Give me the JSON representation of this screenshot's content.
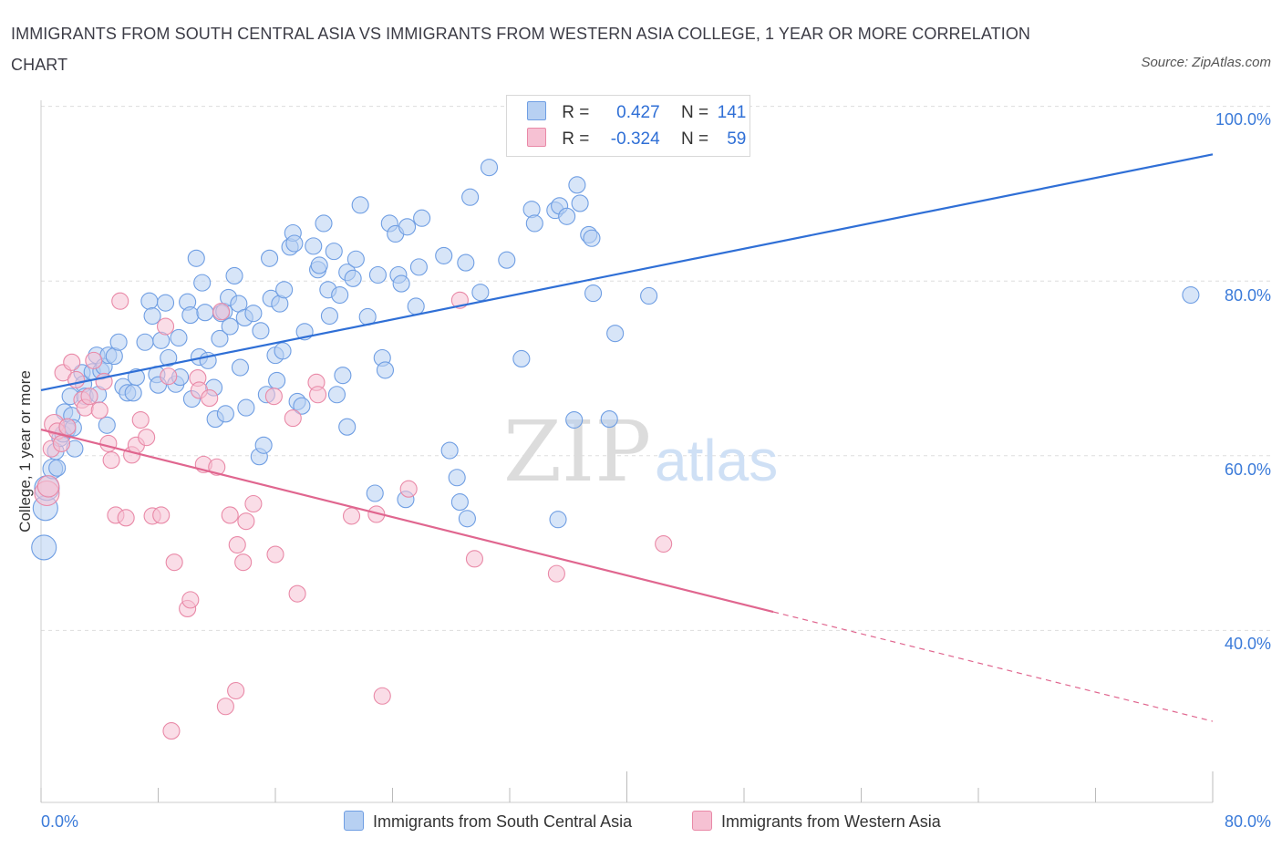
{
  "chart_data": {
    "type": "scatter",
    "title": "IMMIGRANTS FROM SOUTH CENTRAL ASIA VS IMMIGRANTS FROM WESTERN ASIA COLLEGE, 1 YEAR OR MORE CORRELATION CHART",
    "source": "Source: ZipAtlas.com",
    "ylabel": "College, 1 year or more",
    "xlim": [
      0,
      80
    ],
    "ylim": [
      20,
      100
    ],
    "x_tick_labels": {
      "min": "0.0%",
      "max": "80.0%"
    },
    "y_tick_labels": [
      "100.0%",
      "80.0%",
      "60.0%",
      "40.0%"
    ],
    "watermark": {
      "part1": "ZIP",
      "part2": "atlas"
    },
    "legend_labels": {
      "r": "R =",
      "n": "N ="
    },
    "series": [
      {
        "name": "Immigrants from South Central Asia",
        "color": "#6f9ee3",
        "fill": "#b7d0f2",
        "R": "0.427",
        "N": "141",
        "trend": {
          "x0": 0,
          "y0": 67.5,
          "x1": 80,
          "y1": 94.5,
          "dashed_from": null
        },
        "points": [
          [
            0.2,
            49.5,
            1.5
          ],
          [
            0.3,
            54.0,
            1.5
          ],
          [
            0.4,
            56.3,
            1.5
          ],
          [
            0.8,
            58.5,
            1.2
          ],
          [
            1.0,
            60.5,
            1.0
          ],
          [
            1.1,
            58.6,
            1.0
          ],
          [
            1.3,
            62.0,
            1.0
          ],
          [
            1.5,
            62.5,
            1.0
          ],
          [
            1.6,
            65.0,
            1.0
          ],
          [
            1.8,
            63.0,
            1.0
          ],
          [
            2.0,
            66.8,
            1.0
          ],
          [
            2.1,
            64.6,
            1.0
          ],
          [
            2.2,
            63.2,
            1.0
          ],
          [
            2.3,
            60.8,
            1.0
          ],
          [
            2.8,
            69.5,
            1.0
          ],
          [
            2.9,
            68.2,
            1.0
          ],
          [
            3.0,
            66.8,
            1.0
          ],
          [
            3.5,
            69.6,
            1.0
          ],
          [
            3.8,
            71.5,
            1.0
          ],
          [
            3.9,
            67.0,
            1.0
          ],
          [
            4.1,
            69.7,
            1.0
          ],
          [
            4.3,
            70.2,
            1.0
          ],
          [
            4.5,
            63.5,
            1.0
          ],
          [
            4.6,
            71.5,
            1.0
          ],
          [
            5.0,
            71.4,
            1.0
          ],
          [
            5.3,
            73.0,
            1.0
          ],
          [
            5.6,
            67.9,
            1.0
          ],
          [
            5.9,
            67.2,
            1.0
          ],
          [
            6.3,
            67.2,
            1.0
          ],
          [
            6.5,
            69.0,
            1.0
          ],
          [
            7.1,
            73.0,
            1.0
          ],
          [
            7.4,
            77.7,
            1.0
          ],
          [
            7.6,
            76.0,
            1.0
          ],
          [
            7.9,
            69.3,
            1.0
          ],
          [
            8.0,
            68.1,
            1.0
          ],
          [
            8.2,
            73.2,
            1.0
          ],
          [
            8.5,
            77.5,
            1.0
          ],
          [
            8.7,
            71.2,
            1.0
          ],
          [
            9.2,
            68.2,
            1.0
          ],
          [
            9.4,
            73.5,
            1.0
          ],
          [
            9.5,
            69.0,
            1.0
          ],
          [
            10.0,
            77.6,
            1.0
          ],
          [
            10.2,
            76.1,
            1.0
          ],
          [
            10.3,
            66.5,
            1.0
          ],
          [
            10.6,
            82.6,
            1.0
          ],
          [
            10.8,
            71.3,
            1.0
          ],
          [
            11.0,
            79.8,
            1.0
          ],
          [
            11.2,
            76.4,
            1.0
          ],
          [
            11.4,
            70.9,
            1.0
          ],
          [
            11.8,
            67.8,
            1.0
          ],
          [
            11.9,
            64.2,
            1.0
          ],
          [
            12.2,
            73.4,
            1.0
          ],
          [
            12.3,
            76.3,
            1.0
          ],
          [
            12.5,
            76.5,
            1.0
          ],
          [
            12.6,
            64.8,
            1.0
          ],
          [
            12.8,
            78.1,
            1.0
          ],
          [
            12.9,
            74.8,
            1.0
          ],
          [
            13.2,
            80.6,
            1.0
          ],
          [
            13.5,
            77.4,
            1.0
          ],
          [
            13.6,
            70.1,
            1.0
          ],
          [
            13.9,
            75.8,
            1.0
          ],
          [
            14.0,
            65.5,
            1.0
          ],
          [
            14.5,
            76.3,
            1.0
          ],
          [
            14.9,
            59.9,
            1.0
          ],
          [
            15.0,
            74.3,
            1.0
          ],
          [
            15.2,
            61.2,
            1.0
          ],
          [
            15.4,
            67.0,
            1.0
          ],
          [
            15.6,
            82.6,
            1.0
          ],
          [
            15.7,
            78.0,
            1.0
          ],
          [
            16.0,
            71.5,
            1.0
          ],
          [
            16.1,
            68.6,
            1.0
          ],
          [
            16.3,
            77.4,
            1.0
          ],
          [
            16.5,
            72.0,
            1.0
          ],
          [
            16.6,
            79.0,
            1.0
          ],
          [
            17.0,
            83.9,
            1.0
          ],
          [
            17.2,
            85.5,
            1.0
          ],
          [
            17.3,
            84.3,
            1.0
          ],
          [
            17.5,
            66.2,
            1.0
          ],
          [
            17.8,
            65.7,
            1.0
          ],
          [
            18.0,
            74.2,
            1.0
          ],
          [
            18.6,
            84.0,
            1.0
          ],
          [
            18.9,
            81.3,
            1.0
          ],
          [
            19.0,
            81.8,
            1.0
          ],
          [
            19.3,
            86.6,
            1.0
          ],
          [
            19.6,
            79.0,
            1.0
          ],
          [
            19.7,
            76.0,
            1.0
          ],
          [
            20.0,
            83.4,
            1.0
          ],
          [
            20.2,
            67.0,
            1.0
          ],
          [
            20.4,
            78.4,
            1.0
          ],
          [
            20.6,
            69.2,
            1.0
          ],
          [
            20.9,
            81.0,
            1.0
          ],
          [
            20.9,
            63.3,
            1.0
          ],
          [
            21.3,
            80.3,
            1.0
          ],
          [
            21.5,
            82.5,
            1.0
          ],
          [
            21.8,
            88.7,
            1.0
          ],
          [
            22.3,
            75.9,
            1.0
          ],
          [
            22.8,
            55.7,
            1.0
          ],
          [
            23.0,
            80.7,
            1.0
          ],
          [
            23.3,
            71.2,
            1.0
          ],
          [
            23.5,
            69.8,
            1.0
          ],
          [
            23.8,
            86.6,
            1.0
          ],
          [
            24.2,
            85.4,
            1.0
          ],
          [
            24.4,
            80.7,
            1.0
          ],
          [
            24.6,
            79.7,
            1.0
          ],
          [
            24.9,
            55.0,
            1.0
          ],
          [
            25.0,
            86.2,
            1.0
          ],
          [
            25.6,
            77.1,
            1.0
          ],
          [
            25.8,
            81.6,
            1.0
          ],
          [
            26.0,
            87.2,
            1.0
          ],
          [
            27.5,
            82.9,
            1.0
          ],
          [
            27.9,
            60.6,
            1.0
          ],
          [
            28.4,
            57.5,
            1.0
          ],
          [
            28.6,
            54.7,
            1.0
          ],
          [
            29.0,
            82.1,
            1.0
          ],
          [
            29.1,
            52.8,
            1.0
          ],
          [
            29.3,
            89.6,
            1.0
          ],
          [
            30.0,
            78.7,
            1.0
          ],
          [
            30.6,
            93.0,
            1.0
          ],
          [
            31.8,
            82.4,
            1.0
          ],
          [
            32.8,
            71.1,
            1.0
          ],
          [
            33.5,
            88.2,
            1.0
          ],
          [
            33.7,
            86.6,
            1.0
          ],
          [
            35.1,
            88.1,
            1.0
          ],
          [
            35.3,
            52.7,
            1.0
          ],
          [
            35.4,
            88.6,
            1.0
          ],
          [
            35.9,
            87.4,
            1.0
          ],
          [
            36.4,
            64.1,
            1.0
          ],
          [
            36.6,
            91.0,
            1.0
          ],
          [
            36.8,
            88.9,
            1.0
          ],
          [
            37.4,
            85.3,
            1.0
          ],
          [
            37.6,
            84.9,
            1.0
          ],
          [
            37.7,
            78.6,
            1.0
          ],
          [
            38.8,
            64.2,
            1.0
          ],
          [
            39.2,
            74.0,
            1.0
          ],
          [
            41.5,
            78.3,
            1.0
          ],
          [
            78.5,
            78.4,
            1.0
          ]
        ]
      },
      {
        "name": "Immigrants from Western Asia",
        "color": "#e989a7",
        "fill": "#f6c1d3",
        "R": "-0.324",
        "N": "59",
        "trend": {
          "x0": 0,
          "y0": 63.0,
          "x1": 80,
          "y1": 29.6,
          "dashed_from": 50
        },
        "points": [
          [
            0.4,
            55.7,
            1.5
          ],
          [
            0.5,
            56.5,
            1.3
          ],
          [
            0.7,
            60.8,
            1.0
          ],
          [
            0.9,
            63.6,
            1.2
          ],
          [
            1.1,
            62.8,
            1.0
          ],
          [
            1.4,
            61.4,
            1.0
          ],
          [
            1.5,
            69.5,
            1.0
          ],
          [
            1.8,
            63.3,
            1.0
          ],
          [
            2.1,
            70.7,
            1.0
          ],
          [
            2.4,
            68.7,
            1.0
          ],
          [
            2.8,
            66.4,
            1.0
          ],
          [
            3.0,
            65.5,
            1.0
          ],
          [
            3.3,
            66.8,
            1.0
          ],
          [
            3.6,
            70.9,
            1.0
          ],
          [
            4.0,
            65.2,
            1.0
          ],
          [
            4.3,
            68.5,
            1.0
          ],
          [
            4.6,
            61.4,
            1.0
          ],
          [
            4.8,
            59.5,
            1.0
          ],
          [
            5.1,
            53.2,
            1.0
          ],
          [
            5.4,
            77.7,
            1.0
          ],
          [
            5.8,
            52.9,
            1.0
          ],
          [
            6.2,
            60.1,
            1.0
          ],
          [
            6.5,
            61.2,
            1.0
          ],
          [
            6.8,
            64.1,
            1.0
          ],
          [
            7.2,
            62.1,
            1.0
          ],
          [
            7.6,
            53.1,
            1.0
          ],
          [
            8.2,
            53.2,
            1.0
          ],
          [
            8.5,
            74.8,
            1.0
          ],
          [
            8.7,
            69.1,
            1.0
          ],
          [
            8.9,
            28.5,
            1.0
          ],
          [
            9.1,
            47.8,
            1.0
          ],
          [
            10.0,
            42.5,
            1.0
          ],
          [
            10.2,
            43.5,
            1.0
          ],
          [
            10.7,
            68.9,
            1.0
          ],
          [
            10.8,
            67.5,
            1.0
          ],
          [
            11.1,
            59.0,
            1.0
          ],
          [
            11.5,
            66.6,
            1.0
          ],
          [
            12.0,
            58.7,
            1.0
          ],
          [
            12.3,
            76.5,
            1.0
          ],
          [
            12.6,
            31.3,
            1.0
          ],
          [
            12.9,
            53.2,
            1.0
          ],
          [
            13.3,
            33.1,
            1.0
          ],
          [
            13.4,
            49.8,
            1.0
          ],
          [
            13.8,
            47.8,
            1.0
          ],
          [
            14.0,
            52.5,
            1.0
          ],
          [
            14.5,
            54.5,
            1.0
          ],
          [
            15.9,
            66.8,
            1.0
          ],
          [
            16.0,
            48.7,
            1.0
          ],
          [
            17.2,
            64.3,
            1.0
          ],
          [
            17.5,
            44.2,
            1.0
          ],
          [
            18.8,
            68.4,
            1.0
          ],
          [
            18.9,
            67.0,
            1.0
          ],
          [
            21.2,
            53.1,
            1.0
          ],
          [
            22.9,
            53.3,
            1.0
          ],
          [
            23.3,
            32.5,
            1.0
          ],
          [
            25.1,
            56.2,
            1.0
          ],
          [
            28.6,
            77.8,
            1.0
          ],
          [
            29.6,
            48.2,
            1.0
          ],
          [
            35.2,
            46.5,
            1.0
          ],
          [
            42.5,
            49.9,
            1.0
          ]
        ]
      }
    ]
  }
}
